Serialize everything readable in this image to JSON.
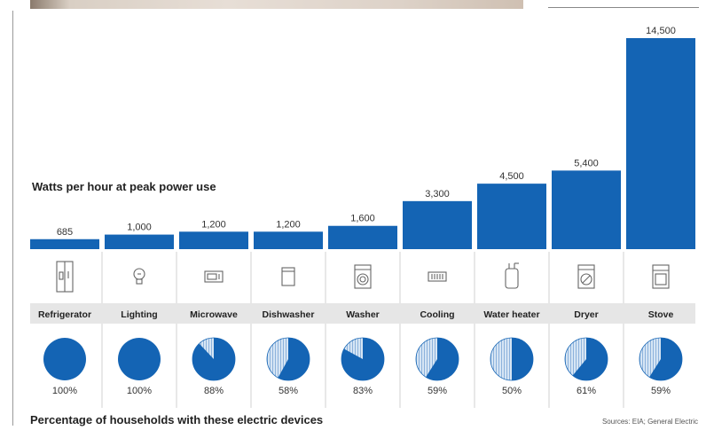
{
  "chart_data": {
    "type": "bar",
    "title": "Watts per hour at peak power use",
    "categories": [
      "Refrigerator",
      "Lighting",
      "Microwave",
      "Dishwasher",
      "Washer",
      "Cooling",
      "Water heater",
      "Dryer",
      "Stove"
    ],
    "values": [
      685,
      1000,
      1200,
      1200,
      1600,
      3300,
      4500,
      5400,
      14500
    ],
    "value_labels": [
      "685",
      "1,000",
      "1,200",
      "1,200",
      "1,600",
      "3,300",
      "4,500",
      "5,400",
      "14,500"
    ],
    "icons": [
      "refrigerator-icon",
      "lightbulb-icon",
      "microwave-icon",
      "dishwasher-icon",
      "washer-icon",
      "air-conditioner-icon",
      "water-heater-icon",
      "dryer-icon",
      "stove-icon"
    ],
    "households": {
      "title": "Percentage of households with these electric devices",
      "values": [
        100,
        100,
        88,
        58,
        83,
        59,
        50,
        61,
        59
      ],
      "labels": [
        "100%",
        "100%",
        "88%",
        "58%",
        "83%",
        "59%",
        "50%",
        "61%",
        "59%"
      ]
    },
    "source": "Sources: EIA; General Electric",
    "colors": {
      "bar": "#1464b4",
      "pie": "#1464b4",
      "pie_remainder": "#cfe0f2",
      "name_band": "#e6e6e6"
    }
  }
}
